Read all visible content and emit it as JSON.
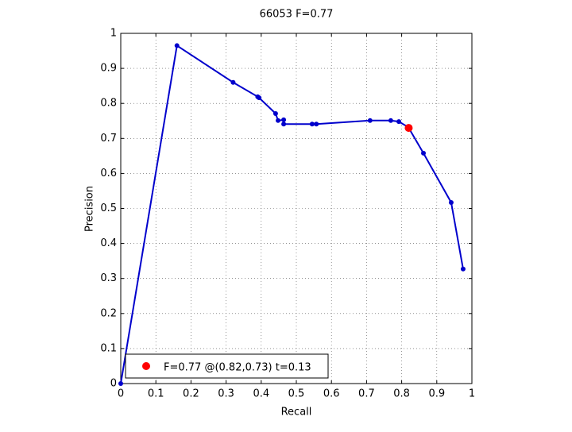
{
  "chart_data": {
    "type": "line",
    "title": "66053 F=0.77",
    "x_label": "Recall",
    "y_label": "Precision",
    "xlim": [
      0,
      1
    ],
    "ylim": [
      0,
      1
    ],
    "xticks": [
      0,
      0.1,
      0.2,
      0.3,
      0.4,
      0.5,
      0.6,
      0.7,
      0.8,
      0.9,
      1
    ],
    "yticks": [
      0,
      0.1,
      0.2,
      0.3,
      0.4,
      0.5,
      0.6,
      0.7,
      0.8,
      0.9,
      1
    ],
    "grid": true,
    "legend": "lower left",
    "series": [
      {
        "color": "#0000cc",
        "x": [
          0,
          0.16,
          0.32,
          0.39,
          0.394,
          0.441,
          0.448,
          0.464,
          0.464,
          0.545,
          0.557,
          0.71,
          0.769,
          0.792,
          0.819,
          0.862,
          0.941,
          0.975
        ],
        "values": [
          0,
          0.965,
          0.86,
          0.819,
          0.816,
          0.771,
          0.751,
          0.753,
          0.741,
          0.741,
          0.741,
          0.751,
          0.751,
          0.748,
          0.732,
          0.658,
          0.517,
          0.327
        ]
      },
      {
        "name": "F=0.77 @(0.82,0.73) t=0.13",
        "color": "#ff0000",
        "x": [
          0.82
        ],
        "values": [
          0.73
        ]
      }
    ]
  }
}
